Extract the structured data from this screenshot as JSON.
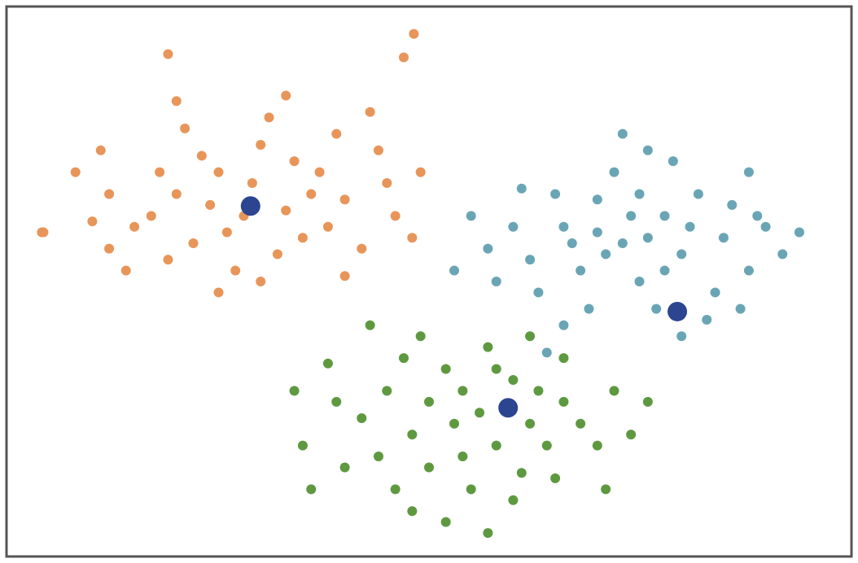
{
  "chart_data": {
    "type": "scatter",
    "xlim": [
      0,
      100
    ],
    "ylim": [
      0,
      100
    ],
    "series": [
      {
        "color": "#e8955a",
        "size": 6,
        "x": [
          28,
          20,
          35,
          15,
          40,
          25,
          32,
          10,
          45,
          22,
          30,
          38,
          18,
          27,
          42,
          12,
          34,
          24,
          36,
          19,
          46,
          29,
          8,
          4,
          49,
          31,
          21,
          40,
          14,
          26,
          33,
          23,
          44,
          17,
          37,
          12,
          30,
          48,
          20,
          47,
          43,
          11,
          39,
          25,
          33,
          48.2,
          19,
          4.2
        ],
        "y": [
          62,
          66,
          58,
          60,
          65,
          70,
          55,
          61,
          68,
          57,
          75,
          60,
          70,
          52,
          56,
          66,
          72,
          64,
          66,
          54,
          62,
          68,
          70,
          59,
          70,
          80,
          78,
          51,
          52,
          59,
          63,
          73,
          74,
          62,
          70,
          56,
          50,
          58,
          83,
          91,
          81,
          74,
          77,
          48,
          84,
          95.3,
          91.6,
          59
        ]
      },
      {
        "color": "#6aa5b5",
        "size": 6,
        "x": [
          73,
          66,
          80,
          70,
          78,
          62,
          85,
          75,
          68,
          82,
          72,
          88,
          65,
          77,
          90,
          60,
          74,
          84,
          69,
          79,
          92,
          57,
          63,
          86,
          71,
          76,
          81,
          67,
          75,
          83,
          94,
          58,
          88,
          73,
          61,
          80,
          55,
          66,
          78,
          87,
          70,
          64,
          76,
          89,
          53
        ],
        "y": [
          57,
          60,
          55,
          65,
          62,
          54,
          58,
          50,
          52,
          66,
          70,
          52,
          66,
          45,
          60,
          60,
          62,
          48,
          45,
          72,
          55,
          56,
          48,
          64,
          55,
          58,
          60,
          57,
          66,
          43,
          59,
          50,
          70,
          77,
          67,
          40,
          62,
          42,
          52,
          45,
          59,
          37,
          74,
          62,
          52
        ]
      },
      {
        "color": "#5e9940",
        "size": 6,
        "x": [
          56,
          50,
          62,
          48,
          60,
          54,
          66,
          45,
          58,
          52,
          64,
          42,
          68,
          55,
          47,
          60,
          39,
          72,
          50,
          57,
          63,
          44,
          70,
          53,
          59,
          49,
          35,
          74,
          61,
          46,
          38,
          66,
          52,
          57,
          34,
          76,
          43,
          65,
          48,
          40,
          71,
          54,
          62,
          36,
          58
        ],
        "y": [
          26,
          28,
          24,
          22,
          32,
          18,
          28,
          30,
          20,
          34,
          20,
          25,
          24,
          12,
          36,
          10,
          28,
          30,
          16,
          38,
          30,
          18,
          20,
          24,
          27,
          40,
          20,
          22,
          15,
          12,
          35,
          36,
          6,
          4,
          30,
          28,
          42,
          14,
          8,
          16,
          12,
          30,
          40,
          12,
          34
        ]
      },
      {
        "color": "#2b4590",
        "size": 12,
        "x": [
          28.8,
          79.5,
          59.4
        ],
        "y": [
          63.8,
          44.5,
          26.9
        ]
      }
    ]
  }
}
